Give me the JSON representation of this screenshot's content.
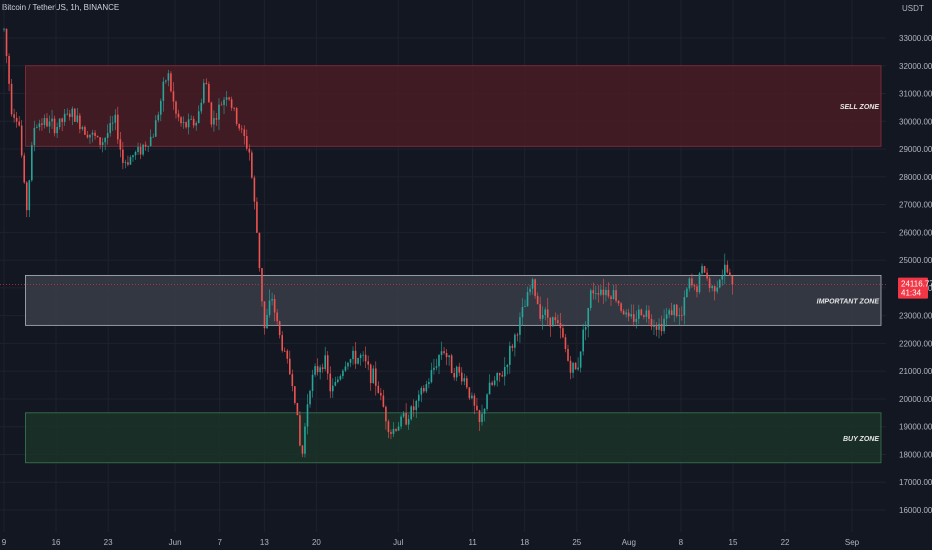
{
  "header": {
    "title": "Bitcoin / TetherUS, 1h, BINANCE"
  },
  "chart_data": {
    "type": "candlestick",
    "y_unit": "USDT",
    "ylim": [
      16000,
      34000
    ],
    "y_ticks": [
      16000,
      17000,
      18000,
      19000,
      20000,
      21000,
      22000,
      23000,
      24000,
      25000,
      26000,
      27000,
      28000,
      29000,
      30000,
      31000,
      32000,
      33000
    ],
    "y_tick_labels": [
      "16000.00",
      "17000.00",
      "18000.00",
      "19000.00",
      "20000.00",
      "21000.00",
      "22000.00",
      "23000.00",
      "24000.00",
      "25000.00",
      "26000.00",
      "27000.00",
      "28000.00",
      "29000.00",
      "30000.00",
      "31000.00",
      "32000.00",
      "33000.00"
    ],
    "x_tick_labels": [
      "9",
      "16",
      "23",
      "Jun",
      "7",
      "13",
      "20",
      "Jul",
      "11",
      "18",
      "25",
      "Aug",
      "8",
      "15",
      "22",
      "Sep"
    ],
    "x_ticks_day": [
      0,
      7,
      14,
      23,
      29,
      35,
      42,
      53,
      63,
      70,
      77,
      84,
      91,
      98,
      105,
      114
    ],
    "x_range_day": [
      0,
      118
    ],
    "zones": [
      {
        "label": "SELL ZONE",
        "low": 29100,
        "high": 32000,
        "day_start": 1,
        "day_end": 114,
        "fill": "#4a1c24",
        "stroke": "#8a2f3c"
      },
      {
        "label": "IMPORTANT ZONE",
        "low": 22650,
        "high": 24450,
        "day_start": 1,
        "day_end": 114,
        "fill": "#3a3d48",
        "stroke": "#b2b5be"
      },
      {
        "label": "BUY ZONE",
        "low": 17700,
        "high": 19500,
        "day_start": 1,
        "day_end": 114,
        "fill": "#1b3328",
        "stroke": "#3a7a52"
      }
    ],
    "current_price": {
      "value": 24116.77,
      "label": "24116.77",
      "countdown": "41:34",
      "color": "#f23645"
    },
    "price_path": [
      [
        0,
        33300
      ],
      [
        1,
        30500
      ],
      [
        2,
        30000
      ],
      [
        3,
        26700
      ],
      [
        4,
        29800
      ],
      [
        5,
        30000
      ],
      [
        7,
        29800
      ],
      [
        9,
        30300
      ],
      [
        11,
        29700
      ],
      [
        13,
        29200
      ],
      [
        15,
        30000
      ],
      [
        16,
        28500
      ],
      [
        18,
        28900
      ],
      [
        20,
        29500
      ],
      [
        22,
        31800
      ],
      [
        23,
        30300
      ],
      [
        24,
        29800
      ],
      [
        26,
        30000
      ],
      [
        27,
        31600
      ],
      [
        28,
        29900
      ],
      [
        30,
        31100
      ],
      [
        31,
        30200
      ],
      [
        33,
        28900
      ],
      [
        34,
        26000
      ],
      [
        35,
        22500
      ],
      [
        36,
        23700
      ],
      [
        37,
        22300
      ],
      [
        39,
        20400
      ],
      [
        40,
        17700
      ],
      [
        41,
        20500
      ],
      [
        43,
        21500
      ],
      [
        44,
        20200
      ],
      [
        46,
        21400
      ],
      [
        48,
        21500
      ],
      [
        50,
        20600
      ],
      [
        51,
        19700
      ],
      [
        52,
        18800
      ],
      [
        53,
        19100
      ],
      [
        55,
        19600
      ],
      [
        57,
        20600
      ],
      [
        59,
        21900
      ],
      [
        60,
        21200
      ],
      [
        62,
        20700
      ],
      [
        64,
        19000
      ],
      [
        65,
        20300
      ],
      [
        67,
        20900
      ],
      [
        69,
        22500
      ],
      [
        70,
        23300
      ],
      [
        71,
        24200
      ],
      [
        72,
        23200
      ],
      [
        74,
        22800
      ],
      [
        75,
        22300
      ],
      [
        76,
        21200
      ],
      [
        77,
        21000
      ],
      [
        78,
        22600
      ],
      [
        79,
        23900
      ],
      [
        80,
        24000
      ],
      [
        82,
        23800
      ],
      [
        84,
        22800
      ],
      [
        86,
        23200
      ],
      [
        88,
        22600
      ],
      [
        90,
        23300
      ],
      [
        91,
        22800
      ],
      [
        92,
        24200
      ],
      [
        93,
        23900
      ],
      [
        94,
        24800
      ],
      [
        95,
        23900
      ],
      [
        96,
        24300
      ],
      [
        97,
        24700
      ],
      [
        98,
        24116.77
      ]
    ]
  }
}
